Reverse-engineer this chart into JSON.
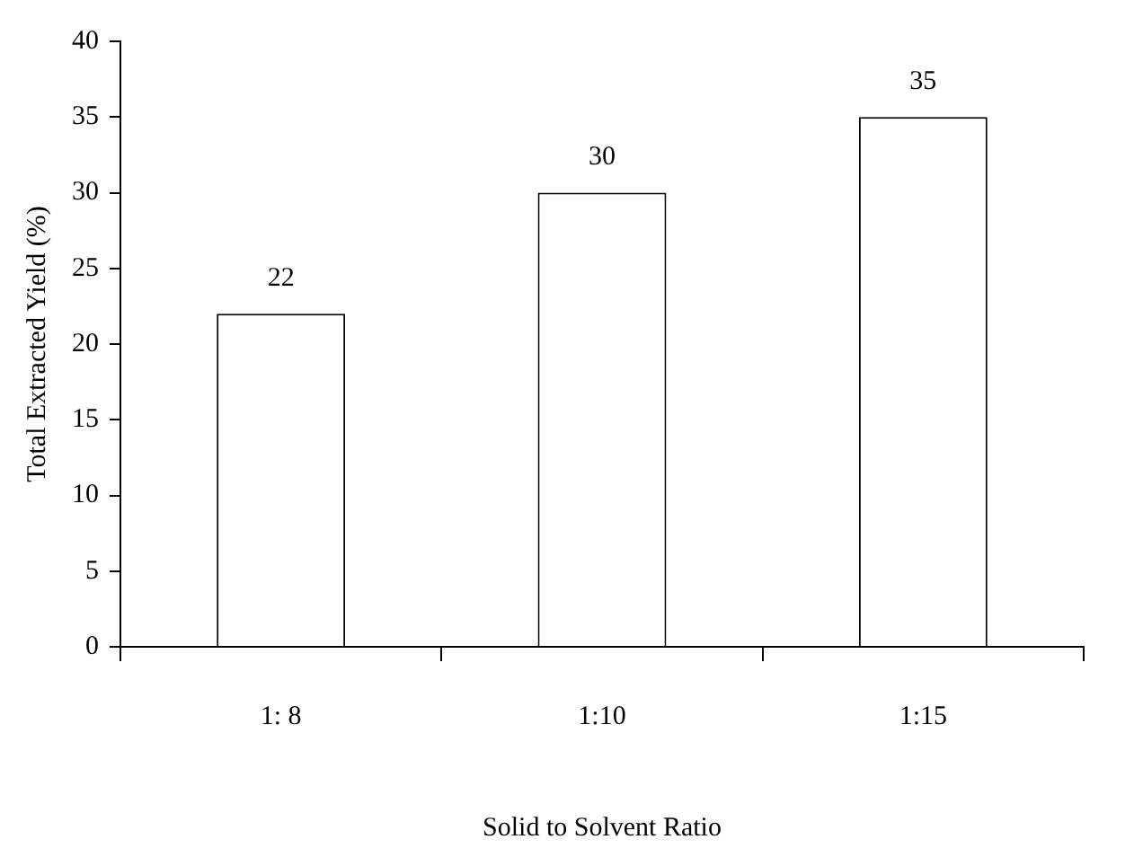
{
  "chart_data": {
    "type": "bar",
    "xlabel": "Solid to Solvent Ratio",
    "ylabel": "Total Extracted Yield (%)",
    "categories": [
      "1: 8",
      "1:10",
      "1:15"
    ],
    "values": [
      22,
      30,
      35
    ],
    "color": "#ffffff",
    "ylim": [
      0,
      40
    ],
    "yticks": [
      0,
      5,
      10,
      15,
      20,
      25,
      30,
      35,
      40
    ],
    "grid": false,
    "legend": false,
    "data_labels": true
  }
}
